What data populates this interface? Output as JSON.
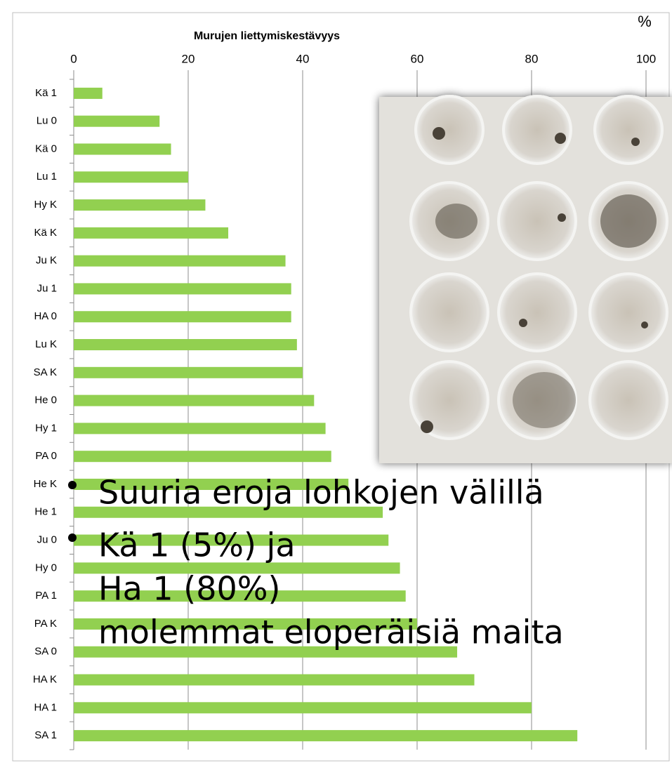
{
  "chart_data": {
    "type": "bar",
    "orientation": "horizontal",
    "title": "Murujen liettymiskestävyys",
    "unit_label": "%",
    "categories": [
      "Kä 1",
      "Lu 0",
      "Kä 0",
      "Lu 1",
      "Hy K",
      "Kä K",
      "Ju K",
      "Ju 1",
      "HA 0",
      "Lu K",
      "SA K",
      "He 0",
      "Hy 1",
      "PA 0",
      "He K",
      "He 1",
      "Ju 0",
      "Hy 0",
      "PA 1",
      "PA K",
      "SA 0",
      "HA K",
      "HA 1",
      "SA 1"
    ],
    "values": [
      5,
      15,
      17,
      20,
      23,
      27,
      37,
      38,
      38,
      39,
      40,
      42,
      44,
      45,
      48,
      54,
      55,
      57,
      58,
      60,
      67,
      70,
      80,
      88
    ],
    "color": "#92d050",
    "xlim": [
      0,
      100
    ],
    "xticks": [
      0,
      20,
      40,
      60,
      80,
      100
    ],
    "grid": true
  },
  "bullets": [
    [
      "Suuria eroja lohkojen välillä"
    ],
    [
      "Kä 1 (5%) ja",
      "Ha 1 (80%)",
      "molemmat eloperäisiä maita"
    ]
  ]
}
